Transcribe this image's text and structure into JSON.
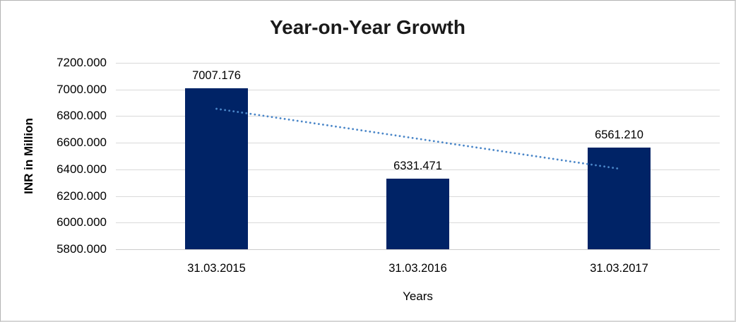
{
  "chart_data": {
    "type": "bar",
    "title": "Year-on-Year Growth",
    "xlabel": "Years",
    "ylabel": "INR in Million",
    "categories": [
      "31.03.2015",
      "31.03.2016",
      "31.03.2017"
    ],
    "values": [
      7007.176,
      6331.471,
      6561.21
    ],
    "data_labels": [
      "7007.176",
      "6331.471",
      "6561.210"
    ],
    "ylim": [
      5800,
      7200
    ],
    "ytick_step": 200,
    "ytick_labels": [
      "5800.000",
      "6000.000",
      "6200.000",
      "6400.000",
      "6600.000",
      "6800.000",
      "7000.000",
      "7200.000"
    ],
    "grid": "horizontal-only",
    "legend": "none",
    "colors": {
      "bar": "#002366",
      "trendline": "#4a86c8",
      "gridline": "#d9d9d9",
      "axis_line": "#cccccc",
      "text": "#000000",
      "title": "#1a1a1a"
    },
    "trendline": {
      "type": "linear",
      "style": "dotted",
      "start_value": 6855,
      "end_value": 6405
    }
  }
}
